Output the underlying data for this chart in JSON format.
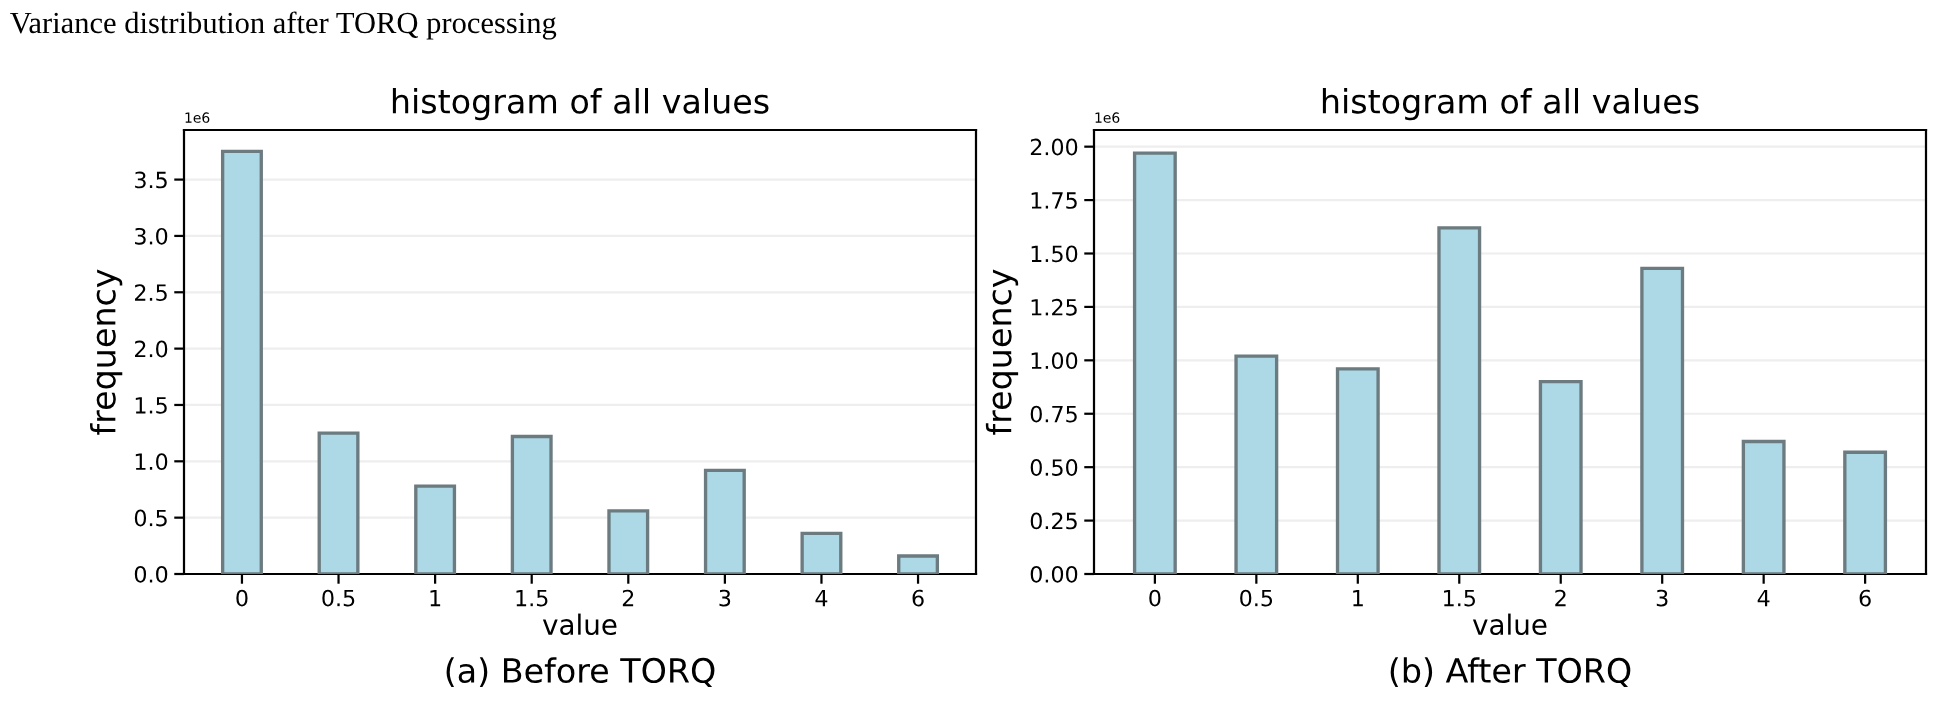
{
  "chart_data": [
    {
      "type": "bar",
      "title": "histogram of all values",
      "xlabel": "value",
      "ylabel": "frequency",
      "categories": [
        "0",
        "0.5",
        "1",
        "1.5",
        "2",
        "3",
        "4",
        "6"
      ],
      "values": [
        3.75,
        1.25,
        0.78,
        1.22,
        0.56,
        0.92,
        0.36,
        0.16
      ],
      "color": "#add8e6",
      "ylim": [
        0,
        3.94
      ],
      "yticks": [
        {
          "value": 0,
          "label": "0.0"
        },
        0.5,
        {
          "value": 1,
          "label": "1.0"
        },
        1.5,
        {
          "value": 2,
          "label": "2.0"
        },
        2.5,
        {
          "value": 3,
          "label": "3.0"
        },
        3.5
      ],
      "grid": "y",
      "legend": false,
      "annotations": [
        "Variance distribution after TORQ processing",
        "1e6",
        "(a) Before TORQ"
      ]
    },
    {
      "type": "bar",
      "title": "histogram of all values",
      "xlabel": "value",
      "ylabel": "frequency",
      "categories": [
        "0",
        "0.5",
        "1",
        "1.5",
        "2",
        "3",
        "4",
        "6"
      ],
      "values": [
        1.97,
        1.02,
        0.96,
        1.62,
        0.9,
        1.43,
        0.62,
        0.57
      ],
      "color": "#add8e6",
      "ylim": [
        0,
        2.078
      ],
      "yticks": [
        {
          "value": 0,
          "label": "0.00"
        },
        0.25,
        {
          "value": 0.5,
          "label": "0.50"
        },
        0.75,
        {
          "value": 1,
          "label": "1.00"
        },
        1.25,
        {
          "value": 1.5,
          "label": "1.50"
        },
        1.75,
        {
          "value": 2,
          "label": "2.00"
        }
      ],
      "grid": "y",
      "legend": false,
      "annotations": [
        "1e6",
        "(b) After TORQ"
      ]
    }
  ]
}
